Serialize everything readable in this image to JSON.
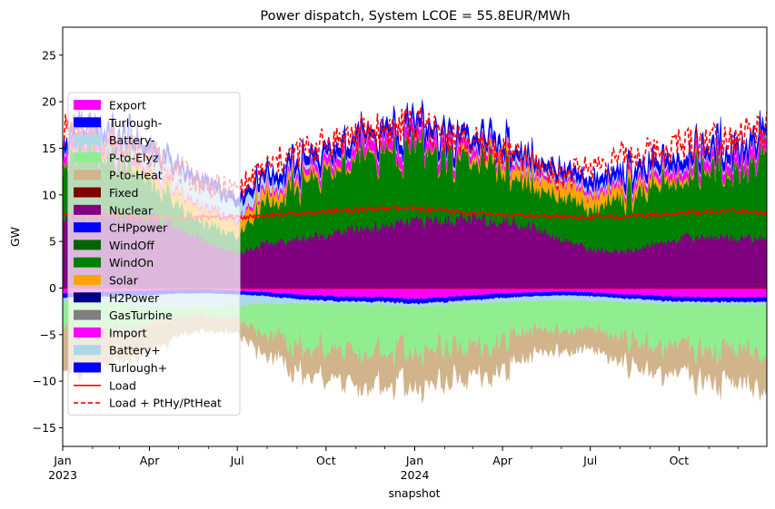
{
  "chart_data": {
    "type": "area",
    "title": "Power dispatch, System LCOE = 55.8EUR/MWh",
    "xlabel": "snapshot",
    "ylabel": "GW",
    "ylim": [
      -17,
      28
    ],
    "xlim": [
      "2023-01-01",
      "2024-12-31"
    ],
    "y_ticks": [
      -15,
      -10,
      -5,
      0,
      5,
      10,
      15,
      20,
      25
    ],
    "x_ticks": [
      {
        "date": "2023-01-01",
        "label": "Jan",
        "sublabel": "2023"
      },
      {
        "date": "2023-04-01",
        "label": "Apr",
        "sublabel": ""
      },
      {
        "date": "2023-07-01",
        "label": "Jul",
        "sublabel": ""
      },
      {
        "date": "2023-10-01",
        "label": "Oct",
        "sublabel": ""
      },
      {
        "date": "2024-01-01",
        "label": "Jan",
        "sublabel": "2024"
      },
      {
        "date": "2024-04-01",
        "label": "Apr",
        "sublabel": ""
      },
      {
        "date": "2024-07-01",
        "label": "Jul",
        "sublabel": ""
      },
      {
        "date": "2024-10-01",
        "label": "Oct",
        "sublabel": ""
      }
    ],
    "grid": false,
    "legend_position": "left",
    "x": [
      "2023-01-01",
      "2023-02-01",
      "2023-03-01",
      "2023-04-01",
      "2023-05-01",
      "2023-06-01",
      "2023-07-01",
      "2023-08-01",
      "2023-09-01",
      "2023-10-01",
      "2023-11-01",
      "2023-12-01",
      "2024-01-01",
      "2024-02-01",
      "2024-03-01",
      "2024-04-01",
      "2024-05-01",
      "2024-06-01",
      "2024-07-01",
      "2024-08-01",
      "2024-09-01",
      "2024-10-01",
      "2024-11-01",
      "2024-12-01",
      "2024-12-31"
    ],
    "positive_series": [
      {
        "name": "Nuclear",
        "color": "#800080",
        "values": [
          7.8,
          7.8,
          7.8,
          7.8,
          6.5,
          5.0,
          3.8,
          4.8,
          5.3,
          5.8,
          6.4,
          6.7,
          7.2,
          7.4,
          7.4,
          7.3,
          6.7,
          5.4,
          4.2,
          3.8,
          4.6,
          5.4,
          5.6,
          5.5,
          5.4
        ]
      },
      {
        "name": "WindOn",
        "color": "#008000",
        "values": [
          7.0,
          6.5,
          5.5,
          4.0,
          2.5,
          1.8,
          2.0,
          4.5,
          5.5,
          6.0,
          7.0,
          7.5,
          8.0,
          7.0,
          6.0,
          5.5,
          5.0,
          4.0,
          5.0,
          6.0,
          6.0,
          6.5,
          7.0,
          7.5,
          8.0
        ]
      },
      {
        "name": "Solar",
        "color": "#ffa500",
        "values": [
          0.2,
          0.4,
          0.6,
          1.0,
          1.4,
          1.6,
          1.5,
          1.2,
          0.8,
          0.5,
          0.3,
          0.2,
          0.2,
          0.3,
          0.6,
          1.0,
          1.3,
          1.5,
          1.5,
          1.2,
          0.9,
          0.5,
          0.3,
          0.2,
          0.2
        ]
      },
      {
        "name": "Import",
        "color": "#ff00ff",
        "values": [
          1.0,
          0.8,
          0.6,
          0.4,
          0.3,
          0.3,
          0.3,
          0.4,
          0.5,
          0.8,
          1.0,
          1.2,
          1.3,
          1.0,
          0.8,
          0.5,
          0.4,
          0.3,
          0.4,
          0.5,
          0.6,
          0.8,
          1.0,
          1.2,
          1.3
        ]
      },
      {
        "name": "Battery+",
        "color": "#add8e6",
        "values": [
          0.3,
          0.5,
          0.8,
          1.5,
          2.0,
          2.0,
          1.5,
          0.8,
          0.5,
          0.3,
          0.3,
          0.3,
          0.3,
          0.3,
          0.4,
          0.5,
          0.5,
          0.5,
          0.5,
          0.4,
          0.4,
          0.3,
          0.3,
          0.3,
          0.3
        ]
      },
      {
        "name": "Turlough+",
        "color": "#0000ff",
        "values": [
          0.9,
          0.9,
          0.9,
          0.9,
          0.8,
          0.8,
          0.8,
          0.8,
          0.9,
          0.9,
          0.9,
          0.9,
          0.9,
          0.9,
          0.9,
          0.9,
          0.8,
          0.8,
          0.8,
          0.8,
          0.9,
          0.9,
          0.9,
          0.9,
          0.9
        ]
      }
    ],
    "negative_series": [
      {
        "name": "Export",
        "color": "#ff00ff",
        "values": [
          -0.6,
          -0.5,
          -0.4,
          -0.3,
          -0.2,
          -0.2,
          -0.3,
          -0.5,
          -0.7,
          -0.9,
          -1.0,
          -1.0,
          -1.2,
          -1.0,
          -0.8,
          -0.6,
          -0.5,
          -0.4,
          -0.5,
          -0.7,
          -0.8,
          -1.0,
          -1.0,
          -1.0,
          -1.0
        ]
      },
      {
        "name": "Turlough-",
        "color": "#0000ff",
        "values": [
          -0.5,
          -0.5,
          -0.5,
          -0.5,
          -0.4,
          -0.4,
          -0.4,
          -0.4,
          -0.5,
          -0.5,
          -0.5,
          -0.5,
          -0.5,
          -0.5,
          -0.5,
          -0.5,
          -0.4,
          -0.4,
          -0.4,
          -0.4,
          -0.5,
          -0.5,
          -0.5,
          -0.5,
          -0.5
        ]
      },
      {
        "name": "Battery-",
        "color": "#add8e6",
        "values": [
          -0.3,
          -0.5,
          -0.8,
          -1.2,
          -1.5,
          -1.5,
          -1.2,
          -0.8,
          -0.5,
          -0.3,
          -0.3,
          -0.3,
          -0.3,
          -0.3,
          -0.4,
          -0.5,
          -0.5,
          -0.5,
          -0.5,
          -0.4,
          -0.4,
          -0.3,
          -0.3,
          -0.3,
          -0.3
        ]
      },
      {
        "name": "P-to-Elyz",
        "color": "#90ee90",
        "values": [
          -3.5,
          -3.0,
          -2.5,
          -2.0,
          -1.0,
          -0.8,
          -1.5,
          -3.5,
          -4.5,
          -4.5,
          -4.8,
          -5.0,
          -5.0,
          -4.8,
          -4.5,
          -4.0,
          -3.5,
          -3.0,
          -3.5,
          -4.0,
          -4.5,
          -4.5,
          -4.8,
          -5.0,
          -5.0
        ]
      },
      {
        "name": "P-to-Heat",
        "color": "#d2b48c",
        "values": [
          -4.5,
          -4.0,
          -3.5,
          -3.0,
          -2.0,
          -1.5,
          -1.5,
          -2.0,
          -2.5,
          -3.0,
          -3.5,
          -3.5,
          -3.5,
          -3.5,
          -3.0,
          -3.0,
          -2.5,
          -2.0,
          -2.0,
          -2.5,
          -2.5,
          -3.0,
          -3.0,
          -3.5,
          -3.5
        ]
      }
    ],
    "load": {
      "name": "Load",
      "color": "#ff0000",
      "values": [
        8.0,
        7.8,
        7.7,
        7.5,
        7.5,
        7.6,
        7.6,
        7.8,
        8.0,
        8.2,
        8.4,
        8.5,
        8.5,
        8.3,
        8.0,
        7.8,
        7.7,
        7.6,
        7.6,
        7.7,
        7.8,
        8.0,
        8.2,
        8.3,
        8.0
      ]
    },
    "load_ptx": {
      "name": "Load + PtHy/PtHeat",
      "color": "#ff0000",
      "values": [
        17.0,
        16.5,
        15.8,
        14.5,
        12.5,
        11.0,
        10.5,
        13.0,
        14.5,
        15.5,
        16.5,
        17.0,
        17.5,
        16.5,
        15.5,
        14.5,
        13.5,
        12.0,
        13.0,
        14.0,
        14.5,
        15.5,
        16.0,
        16.5,
        17.0
      ]
    },
    "legend": [
      {
        "name": "Export",
        "color": "#ff00ff",
        "kind": "patch"
      },
      {
        "name": "Turlough-",
        "color": "#0000ff",
        "kind": "patch"
      },
      {
        "name": "Battery-",
        "color": "#add8e6",
        "kind": "patch"
      },
      {
        "name": "P-to-Elyz",
        "color": "#90ee90",
        "kind": "patch"
      },
      {
        "name": "P-to-Heat",
        "color": "#d2b48c",
        "kind": "patch"
      },
      {
        "name": "Fixed",
        "color": "#800000",
        "kind": "patch"
      },
      {
        "name": "Nuclear",
        "color": "#800080",
        "kind": "patch"
      },
      {
        "name": "CHPpower",
        "color": "#0000ff",
        "kind": "patch"
      },
      {
        "name": "WindOff",
        "color": "#006400",
        "kind": "patch"
      },
      {
        "name": "WindOn",
        "color": "#008000",
        "kind": "patch"
      },
      {
        "name": "Solar",
        "color": "#ffa500",
        "kind": "patch"
      },
      {
        "name": "H2Power",
        "color": "#000080",
        "kind": "patch"
      },
      {
        "name": "GasTurbine",
        "color": "#808080",
        "kind": "patch"
      },
      {
        "name": "Import",
        "color": "#ff00ff",
        "kind": "patch"
      },
      {
        "name": "Battery+",
        "color": "#add8e6",
        "kind": "patch"
      },
      {
        "name": "Turlough+",
        "color": "#0000ff",
        "kind": "patch"
      },
      {
        "name": "Load",
        "color": "#ff0000",
        "kind": "line"
      },
      {
        "name": "Load + PtHy/PtHeat",
        "color": "#ff0000",
        "kind": "dashed"
      }
    ]
  }
}
